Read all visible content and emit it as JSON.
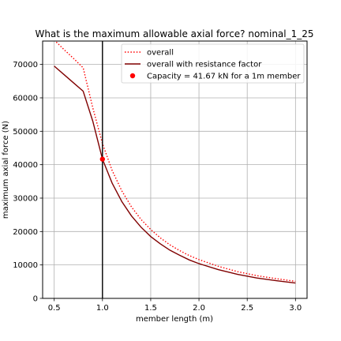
{
  "chart_data": {
    "type": "line",
    "title": "What is the maximum allowable axial force? nominal_1_25",
    "xlabel": "member length (m)",
    "ylabel": "maximum axial force (N)",
    "xlim": [
      0.38,
      3.12
    ],
    "ylim": [
      0,
      77000
    ],
    "x_ticks": [
      0.5,
      1.0,
      1.5,
      2.0,
      2.5,
      3.0
    ],
    "x_tick_labels": [
      "0.5",
      "1.0",
      "1.5",
      "2.0",
      "2.5",
      "3.0"
    ],
    "y_ticks": [
      0,
      10000,
      20000,
      30000,
      40000,
      50000,
      60000,
      70000
    ],
    "y_tick_labels": [
      "0",
      "10000",
      "20000",
      "30000",
      "40000",
      "50000",
      "60000",
      "70000"
    ],
    "grid": true,
    "legend_position": "top-right",
    "series": [
      {
        "name": "overall",
        "style": "dotted",
        "color": "#ff0000",
        "x": [
          0.5,
          0.6,
          0.7,
          0.8,
          0.9,
          1.0,
          1.1,
          1.2,
          1.3,
          1.4,
          1.5,
          1.6,
          1.7,
          1.8,
          1.9,
          2.0,
          2.2,
          2.4,
          2.6,
          2.8,
          3.0
        ],
        "y": [
          77300,
          74500,
          71800,
          69000,
          57000,
          46300,
          38300,
          32200,
          27400,
          23600,
          20600,
          18100,
          16000,
          14300,
          12800,
          11600,
          9600,
          8000,
          6800,
          5900,
          5100
        ]
      },
      {
        "name": "overall with resistance factor",
        "style": "solid",
        "color": "#800000",
        "x": [
          0.5,
          0.6,
          0.7,
          0.8,
          0.9,
          1.0,
          1.1,
          1.2,
          1.3,
          1.4,
          1.5,
          1.6,
          1.7,
          1.8,
          1.9,
          2.0,
          2.2,
          2.4,
          2.6,
          2.8,
          3.0
        ],
        "y": [
          69500,
          67000,
          64500,
          62000,
          53000,
          41670,
          34500,
          29000,
          24700,
          21300,
          18500,
          16300,
          14400,
          12900,
          11500,
          10400,
          8600,
          7200,
          6100,
          5300,
          4600
        ]
      },
      {
        "name": "Capacity = 41.67 kN for a 1m member",
        "style": "marker",
        "color": "#ff0000",
        "x": [
          1.0
        ],
        "y": [
          41670
        ]
      }
    ],
    "vline": {
      "x": 1.0,
      "color": "#000000"
    }
  }
}
